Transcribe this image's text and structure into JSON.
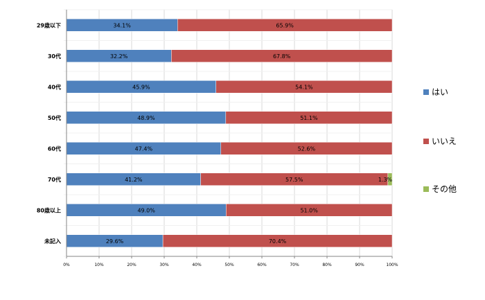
{
  "chart_data": {
    "type": "bar",
    "orientation": "horizontal",
    "stacked": true,
    "categories": [
      "29歳以下",
      "30代",
      "40代",
      "50代",
      "60代",
      "70代",
      "80歳以上",
      "未記入"
    ],
    "series": [
      {
        "name": "はい",
        "color": "#4F81BD",
        "values": [
          34.1,
          32.2,
          45.9,
          48.9,
          47.4,
          41.2,
          49.0,
          29.6
        ]
      },
      {
        "name": "いいえ",
        "color": "#C0504D",
        "values": [
          65.9,
          67.8,
          54.1,
          51.1,
          52.6,
          57.5,
          51.0,
          70.4
        ]
      },
      {
        "name": "その他",
        "color": "#9BBB59",
        "values": [
          0,
          0,
          0,
          0,
          0,
          1.3,
          0,
          0
        ]
      }
    ],
    "data_labels": [
      [
        "34.1%",
        "32.2%",
        "45.9%",
        "48.9%",
        "47.4%",
        "41.2%",
        "49.0%",
        "29.6%"
      ],
      [
        "65.9%",
        "67.8%",
        "54.1%",
        "51.1%",
        "52.6%",
        "57.5%",
        "51.0%",
        "70.4%"
      ],
      [
        "",
        "",
        "",
        "",
        "",
        "1.3%",
        "",
        ""
      ]
    ],
    "xlim": [
      0,
      100
    ],
    "x_ticks": [
      "0%",
      "10%",
      "20%",
      "30%",
      "40%",
      "50%",
      "60%",
      "70%",
      "80%",
      "90%",
      "100%"
    ],
    "grid": true,
    "legend_position": "right",
    "title": "",
    "xlabel": "",
    "ylabel": ""
  }
}
